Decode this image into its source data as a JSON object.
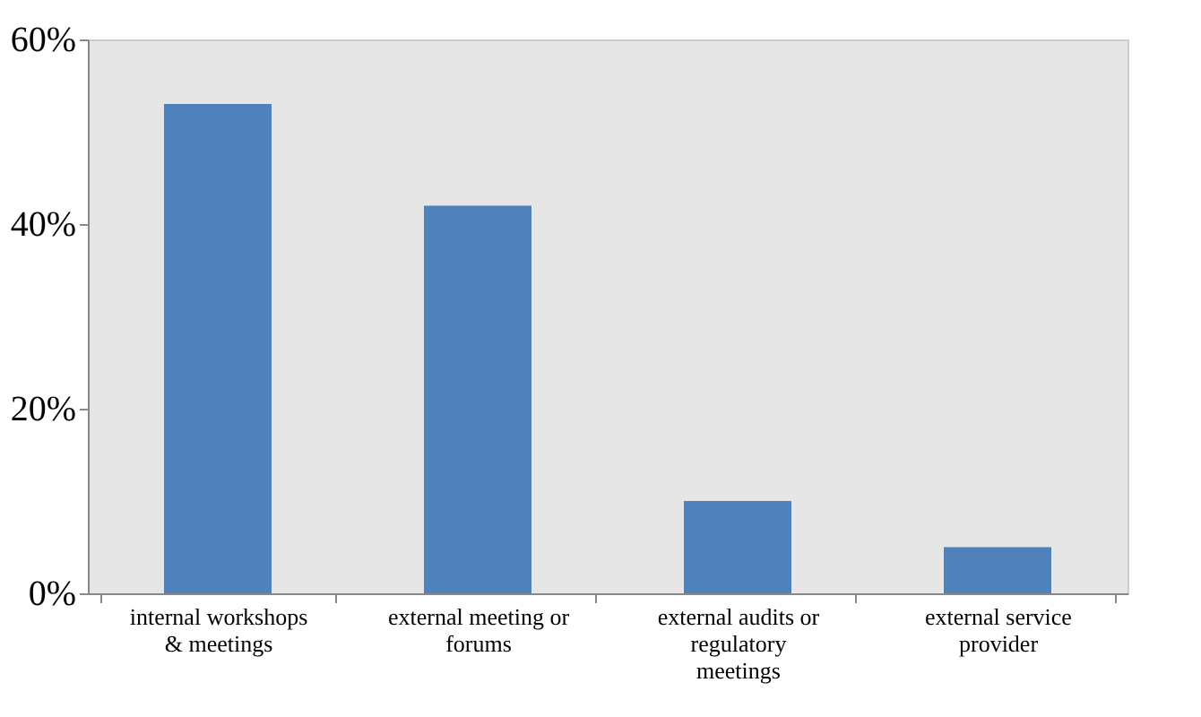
{
  "chart_data": {
    "type": "bar",
    "categories": [
      "internal workshops\n& meetings",
      "external meeting or\nforums",
      "external audits or\nregulatory\nmeetings",
      "external service\nprovider"
    ],
    "values": [
      53,
      42,
      10,
      5
    ],
    "color": "#4f81bd",
    "ylim": [
      0,
      60
    ],
    "yticks": [
      {
        "value": 0,
        "label": "0%"
      },
      {
        "value": 20,
        "label": "20%"
      },
      {
        "value": 40,
        "label": "40%"
      },
      {
        "value": 60,
        "label": "60%"
      }
    ],
    "grid": false
  }
}
